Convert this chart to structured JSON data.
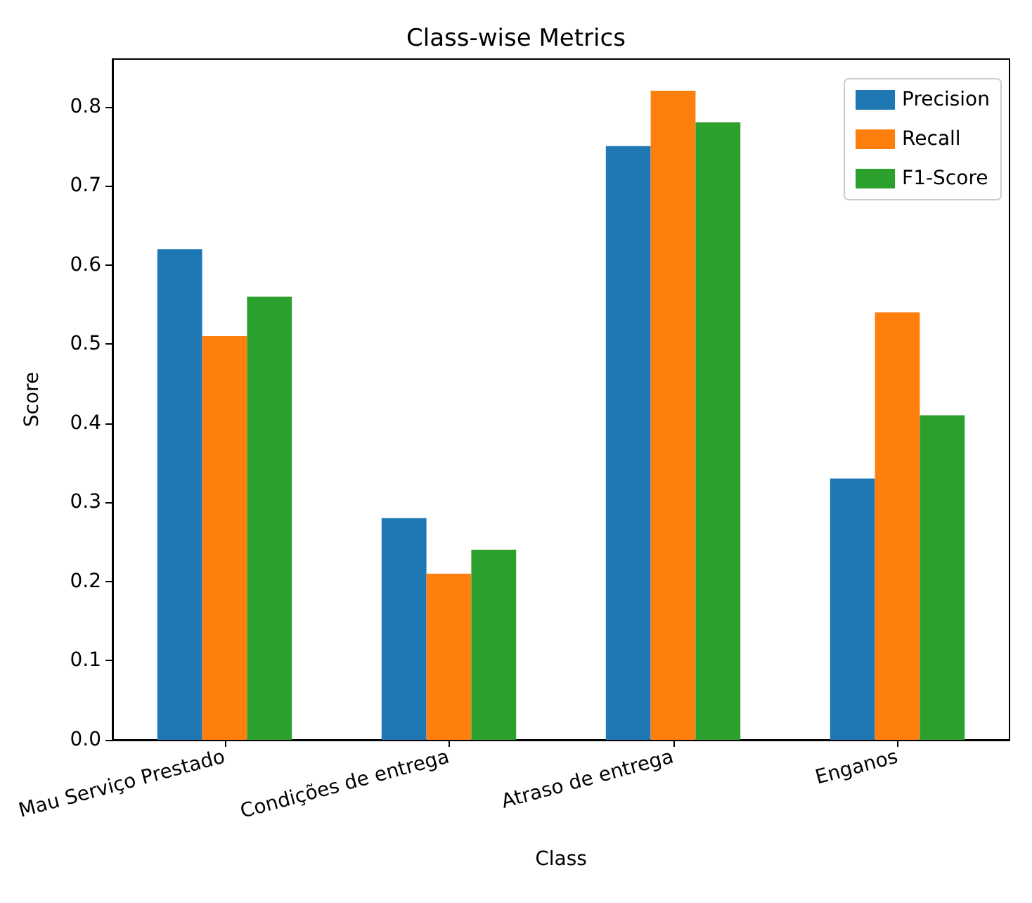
{
  "chart_data": {
    "type": "bar",
    "title": "Class-wise Metrics",
    "xlabel": "Class",
    "ylabel": "Score",
    "categories": [
      "Mau Serviço Prestado",
      "Condições de entrega",
      "Atraso de entrega",
      "Enganos"
    ],
    "series": [
      {
        "name": "Precision",
        "color": "#1f77b4",
        "values": [
          0.62,
          0.28,
          0.75,
          0.33
        ]
      },
      {
        "name": "Recall",
        "color": "#ff7f0e",
        "values": [
          0.51,
          0.21,
          0.82,
          0.54
        ]
      },
      {
        "name": "F1-Score",
        "color": "#2ca02c",
        "values": [
          0.56,
          0.24,
          0.78,
          0.41
        ]
      }
    ],
    "ylim": [
      0,
      0.86
    ],
    "yticks": [
      {
        "value": 0,
        "label": "0.0"
      },
      0.1,
      0.2,
      0.3,
      0.4,
      0.5,
      0.6,
      0.7,
      0.8
    ],
    "grid": false,
    "legend": "top right"
  }
}
